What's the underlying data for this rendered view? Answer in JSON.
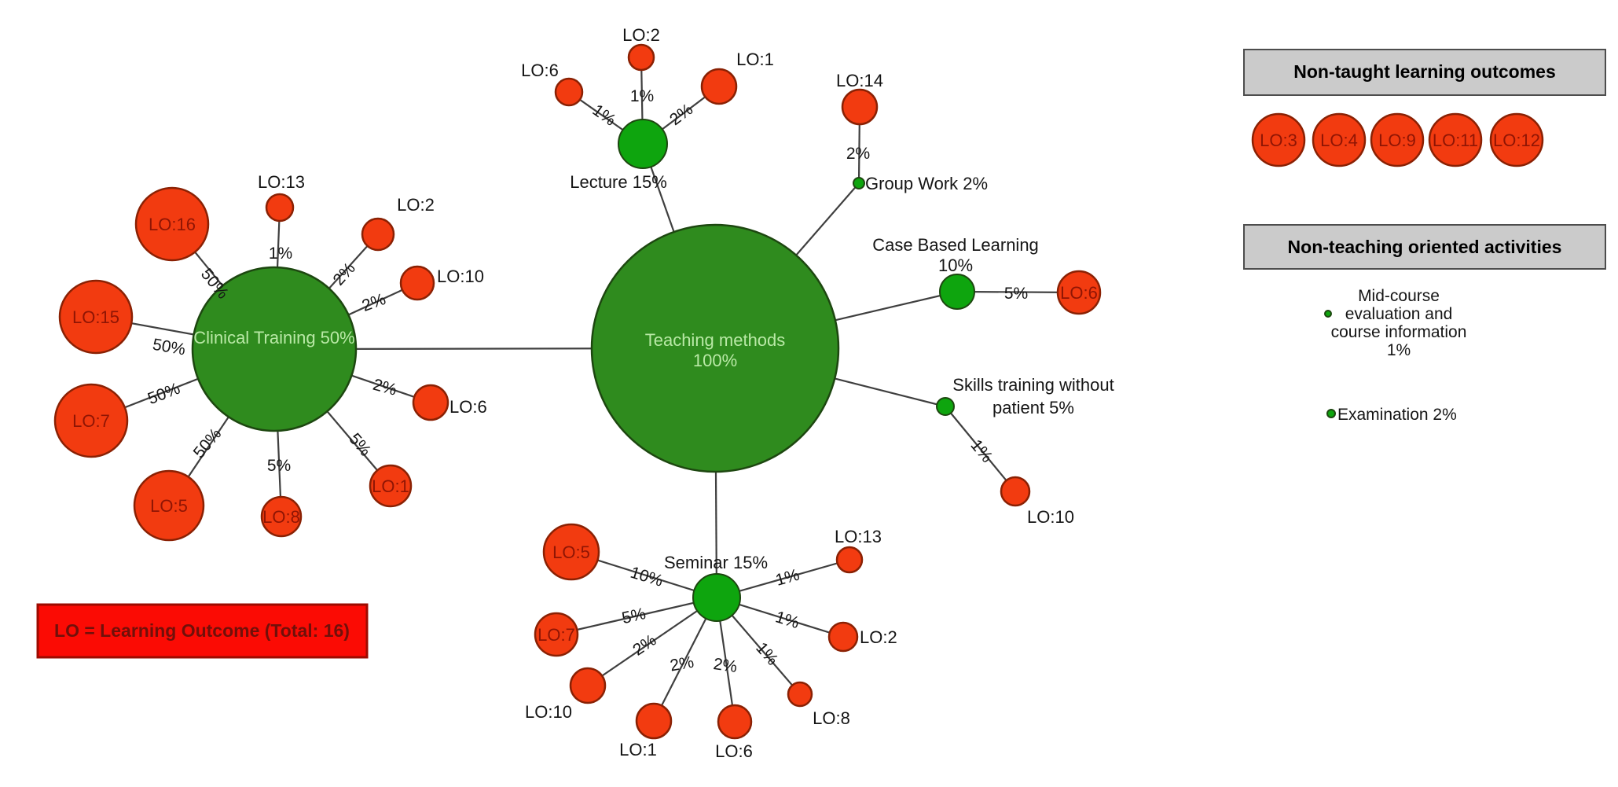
{
  "legend": {
    "text": "LO = Learning Outcome (Total: 16)"
  },
  "sidebar": {
    "non_taught": {
      "title": "Non-taught learning outcomes",
      "items": [
        "LO:3",
        "LO:4",
        "LO:9",
        "LO:11",
        "LO:12"
      ]
    },
    "non_teaching": {
      "title": "Non-teaching oriented activities",
      "activities": [
        {
          "id": "midcourse",
          "lines": [
            "Mid-course",
            "evaluation and",
            "course information",
            "1%"
          ]
        },
        {
          "id": "examination",
          "lines": [
            "Examination 2%"
          ]
        }
      ]
    }
  },
  "nodes": {
    "hubs": [
      {
        "id": "teaching",
        "lines": [
          "Teaching methods",
          "100%"
        ],
        "label_inside": true
      },
      {
        "id": "clinical",
        "lines": [
          "Clinical Training 50%"
        ],
        "label_inside": true
      },
      {
        "id": "lecture",
        "lines": [
          "Lecture 15%"
        ]
      },
      {
        "id": "seminar",
        "lines": [
          "Seminar 15%"
        ]
      },
      {
        "id": "groupwork",
        "lines": [
          "Group Work 2%"
        ]
      },
      {
        "id": "cbl",
        "lines": [
          "Case Based Learning",
          "10%"
        ]
      },
      {
        "id": "skills",
        "lines": [
          "Skills training without",
          "patient 5%"
        ]
      }
    ],
    "hub_edges": [
      [
        "teaching",
        "clinical"
      ],
      [
        "teaching",
        "lecture"
      ],
      [
        "teaching",
        "seminar"
      ],
      [
        "teaching",
        "groupwork"
      ],
      [
        "teaching",
        "cbl"
      ],
      [
        "teaching",
        "skills"
      ]
    ],
    "satellites": [
      {
        "id": "c16",
        "hub": "clinical",
        "label": "LO:16",
        "percent": "50%",
        "inside": true
      },
      {
        "id": "c13",
        "hub": "clinical",
        "label": "LO:13",
        "percent": "1%"
      },
      {
        "id": "c2",
        "hub": "clinical",
        "label": "LO:2",
        "percent": "2%"
      },
      {
        "id": "c10",
        "hub": "clinical",
        "label": "LO:10",
        "percent": "2%"
      },
      {
        "id": "c6",
        "hub": "clinical",
        "label": "LO:6",
        "percent": "2%"
      },
      {
        "id": "c1",
        "hub": "clinical",
        "label": "LO:1",
        "percent": "5%",
        "inside": true
      },
      {
        "id": "c8",
        "hub": "clinical",
        "label": "LO:8",
        "percent": "5%",
        "inside": true
      },
      {
        "id": "c5",
        "hub": "clinical",
        "label": "LO:5",
        "percent": "50%",
        "inside": true
      },
      {
        "id": "c7",
        "hub": "clinical",
        "label": "LO:7",
        "percent": "50%",
        "inside": true
      },
      {
        "id": "c15",
        "hub": "clinical",
        "label": "LO:15",
        "percent": "50%",
        "inside": true
      },
      {
        "id": "l6",
        "hub": "lecture",
        "label": "LO:6",
        "percent": "1%"
      },
      {
        "id": "l2",
        "hub": "lecture",
        "label": "LO:2",
        "percent": "1%"
      },
      {
        "id": "l1",
        "hub": "lecture",
        "label": "LO:1",
        "percent": "2%"
      },
      {
        "id": "g14",
        "hub": "groupwork",
        "label": "LO:14",
        "percent": "2%"
      },
      {
        "id": "b6",
        "hub": "cbl",
        "label": "LO:6",
        "percent": "5%",
        "inside": true
      },
      {
        "id": "s10",
        "hub": "skills",
        "label": "LO:10",
        "percent": "1%"
      },
      {
        "id": "m5",
        "hub": "seminar",
        "label": "LO:5",
        "percent": "10%",
        "inside": true
      },
      {
        "id": "m7",
        "hub": "seminar",
        "label": "LO:7",
        "percent": "5%",
        "inside": true
      },
      {
        "id": "m10",
        "hub": "seminar",
        "label": "LO:10",
        "percent": "2%"
      },
      {
        "id": "m1",
        "hub": "seminar",
        "label": "LO:1",
        "percent": "2%"
      },
      {
        "id": "m6",
        "hub": "seminar",
        "label": "LO:6",
        "percent": "2%"
      },
      {
        "id": "m8",
        "hub": "seminar",
        "label": "LO:8",
        "percent": "1%"
      },
      {
        "id": "m2",
        "hub": "seminar",
        "label": "LO:2",
        "percent": "1%"
      },
      {
        "id": "m13",
        "hub": "seminar",
        "label": "LO:13",
        "percent": "1%"
      }
    ]
  },
  "colors": {
    "hub_green": "#2f8b1e",
    "node_green": "#0ea50e",
    "satellite_red": "#f23b10",
    "satellite_label": "#8f1504",
    "hub_label": "#b9e9a6",
    "legend_fill": "#fb0b04",
    "legend_text": "#70100a",
    "header_gray": "#cbcbcb",
    "edge_line": "#3f3f3f"
  }
}
